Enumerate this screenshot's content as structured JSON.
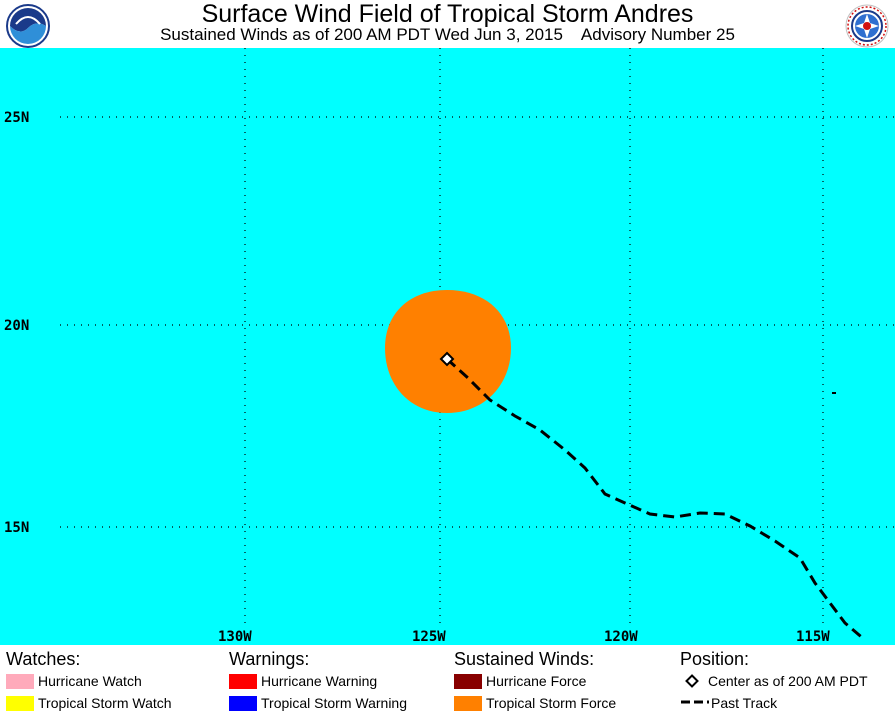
{
  "header": {
    "title": "Surface Wind Field of Tropical Storm Andres",
    "subtitle": "Sustained Winds as of 200 AM PDT Wed Jun 3, 2015    Advisory Number 25",
    "left_logo_text": "NOAA",
    "right_logo_text": "NATIONAL WEATHER SERVICE"
  },
  "map": {
    "ocean_color": "#00ffff",
    "lat_labels": [
      "25N",
      "20N",
      "15N"
    ],
    "lon_labels": [
      "130W",
      "125W",
      "120W",
      "115W"
    ],
    "wind_field_color": "#ff8000",
    "center_marker": "diamond-icon",
    "track_color": "#000000"
  },
  "legend": {
    "watches": {
      "heading": "Watches:",
      "items": [
        {
          "label": "Hurricane Watch",
          "color": "#ffaabb"
        },
        {
          "label": "Tropical Storm Watch",
          "color": "#ffff00"
        }
      ]
    },
    "warnings": {
      "heading": "Warnings:",
      "items": [
        {
          "label": "Hurricane Warning",
          "color": "#ff0000"
        },
        {
          "label": "Tropical Storm Warning",
          "color": "#0000ff"
        }
      ]
    },
    "winds": {
      "heading": "Sustained Winds:",
      "items": [
        {
          "label": "Hurricane Force",
          "color": "#880000"
        },
        {
          "label": "Tropical Storm Force",
          "color": "#ff8000"
        }
      ]
    },
    "position": {
      "heading": "Position:",
      "center_label": "Center as of 200 AM PDT",
      "track_label": "Past Track"
    }
  }
}
